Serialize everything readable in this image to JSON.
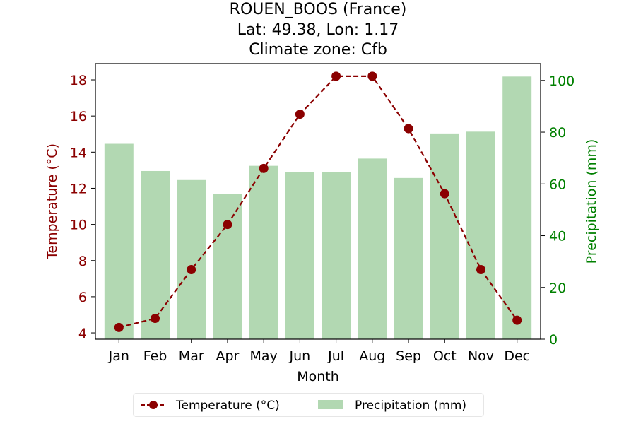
{
  "chart_data": {
    "type": "bar+line",
    "title_lines": [
      "ROUEN_BOOS (France)",
      "Lat: 49.38, Lon: 1.17",
      "Climate zone: Cfb"
    ],
    "xlabel": "Month",
    "categories": [
      "Jan",
      "Feb",
      "Mar",
      "Apr",
      "May",
      "Jun",
      "Jul",
      "Aug",
      "Sep",
      "Oct",
      "Nov",
      "Dec"
    ],
    "temperature": {
      "name": "Temperature (°C)",
      "axis_label": "Temperature (°C)",
      "values": [
        4.3,
        4.8,
        7.5,
        10.0,
        13.1,
        16.1,
        18.2,
        18.2,
        15.3,
        11.7,
        7.5,
        4.7
      ],
      "ylim": [
        3.65,
        18.9
      ],
      "ticks": [
        4,
        6,
        8,
        10,
        12,
        14,
        16,
        18
      ],
      "color": "#8b0000"
    },
    "precipitation": {
      "name": "Precipitation (mm)",
      "axis_label": "Precipitation (mm)",
      "values": [
        75.5,
        65.0,
        61.5,
        56.0,
        67.0,
        64.5,
        64.5,
        69.8,
        62.3,
        79.5,
        80.2,
        101.5
      ],
      "ylim": [
        0,
        106.5
      ],
      "ticks": [
        0,
        20,
        40,
        60,
        80,
        100
      ],
      "color": "#b2d8b2",
      "tick_color": "#008000"
    },
    "legend_placement": "bottom-center",
    "grid": false
  }
}
